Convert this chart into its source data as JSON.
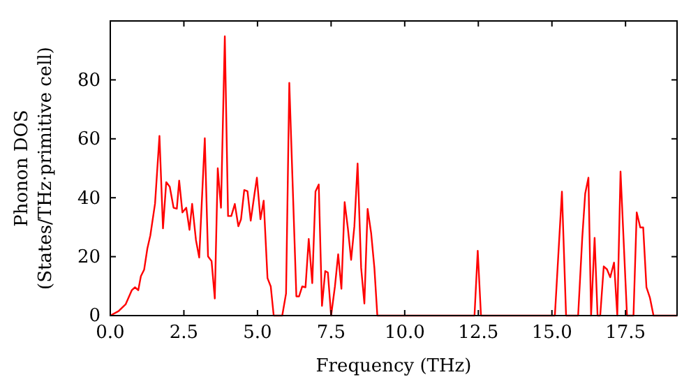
{
  "chart_data": {
    "type": "line",
    "xlabel": "Frequency (THz)",
    "ylabel": "Phonon DOS\n(States/THz·primitive cell)",
    "xlim": [
      0,
      19.25
    ],
    "ylim": [
      0,
      100
    ],
    "xticks": [
      {
        "value": 0,
        "label": "0.0"
      },
      2.5,
      {
        "value": 5,
        "label": "5.0"
      },
      7.5,
      {
        "value": 10,
        "label": "10.0"
      },
      12.5,
      {
        "value": 15,
        "label": "15.0"
      },
      17.5
    ],
    "yticks": [
      0,
      20,
      40,
      60,
      80
    ],
    "grid": false,
    "marker": "none",
    "line_style": "solid",
    "series": [
      {
        "color": "#ff0000",
        "x": [
          0,
          0.28,
          0.52,
          0.73,
          0.84,
          0.95,
          1.04,
          1.15,
          1.26,
          1.36,
          1.52,
          1.67,
          1.79,
          1.9,
          2.02,
          2.15,
          2.26,
          2.34,
          2.45,
          2.58,
          2.69,
          2.78,
          2.91,
          3.02,
          3.21,
          3.32,
          3.44,
          3.55,
          3.65,
          3.76,
          3.89,
          4.0,
          4.11,
          4.23,
          4.35,
          4.44,
          4.55,
          4.66,
          4.77,
          4.9,
          4.98,
          5.1,
          5.21,
          5.34,
          5.45,
          5.55,
          5.84,
          5.97,
          6.08,
          6.32,
          6.41,
          6.52,
          6.63,
          6.74,
          6.86,
          6.97,
          7.08,
          7.19,
          7.3,
          7.39,
          7.5,
          7.63,
          7.74,
          7.85,
          7.96,
          8.07,
          8.18,
          8.29,
          8.4,
          8.52,
          8.63,
          8.74,
          8.86,
          8.97,
          9.07,
          12.37,
          12.48,
          12.59,
          15.1,
          15.34,
          15.48,
          15.89,
          16.03,
          16.13,
          16.24,
          16.33,
          16.45,
          16.55,
          16.64,
          16.76,
          16.87,
          16.98,
          17.11,
          17.22,
          17.33,
          17.55,
          17.77,
          17.88,
          18.0,
          18.1,
          18.21,
          18.33,
          18.45,
          19.25
        ],
        "values": [
          0,
          1.5,
          3.8,
          8.6,
          9.6,
          8.6,
          13.4,
          15.6,
          22.8,
          27.2,
          38,
          61,
          29.6,
          45.3,
          43.7,
          36.6,
          36.3,
          45.8,
          35,
          36.6,
          29.1,
          37.9,
          25.6,
          19.7,
          60.2,
          20.1,
          18.5,
          5.8,
          50,
          36.6,
          94.8,
          33.8,
          33.8,
          37.9,
          30.3,
          32.7,
          42.6,
          42.2,
          32.2,
          41.4,
          46.8,
          32.7,
          39,
          12.7,
          9.9,
          0,
          0,
          7.5,
          79,
          6.5,
          6.5,
          9.9,
          9.6,
          26,
          11,
          42.1,
          44.5,
          3.3,
          15.1,
          14.6,
          0,
          9.9,
          20.8,
          9.1,
          38.5,
          29.6,
          18.9,
          30.3,
          51.6,
          16.2,
          4.1,
          36.2,
          28,
          16.2,
          0,
          0,
          22,
          0,
          0,
          42.1,
          0,
          0,
          26.4,
          41.4,
          46.8,
          0,
          26.4,
          0,
          0,
          16.7,
          15.7,
          13,
          18,
          0,
          48.9,
          0,
          0,
          35,
          29.9,
          29.9,
          9.6,
          6,
          0,
          0
        ]
      }
    ]
  }
}
